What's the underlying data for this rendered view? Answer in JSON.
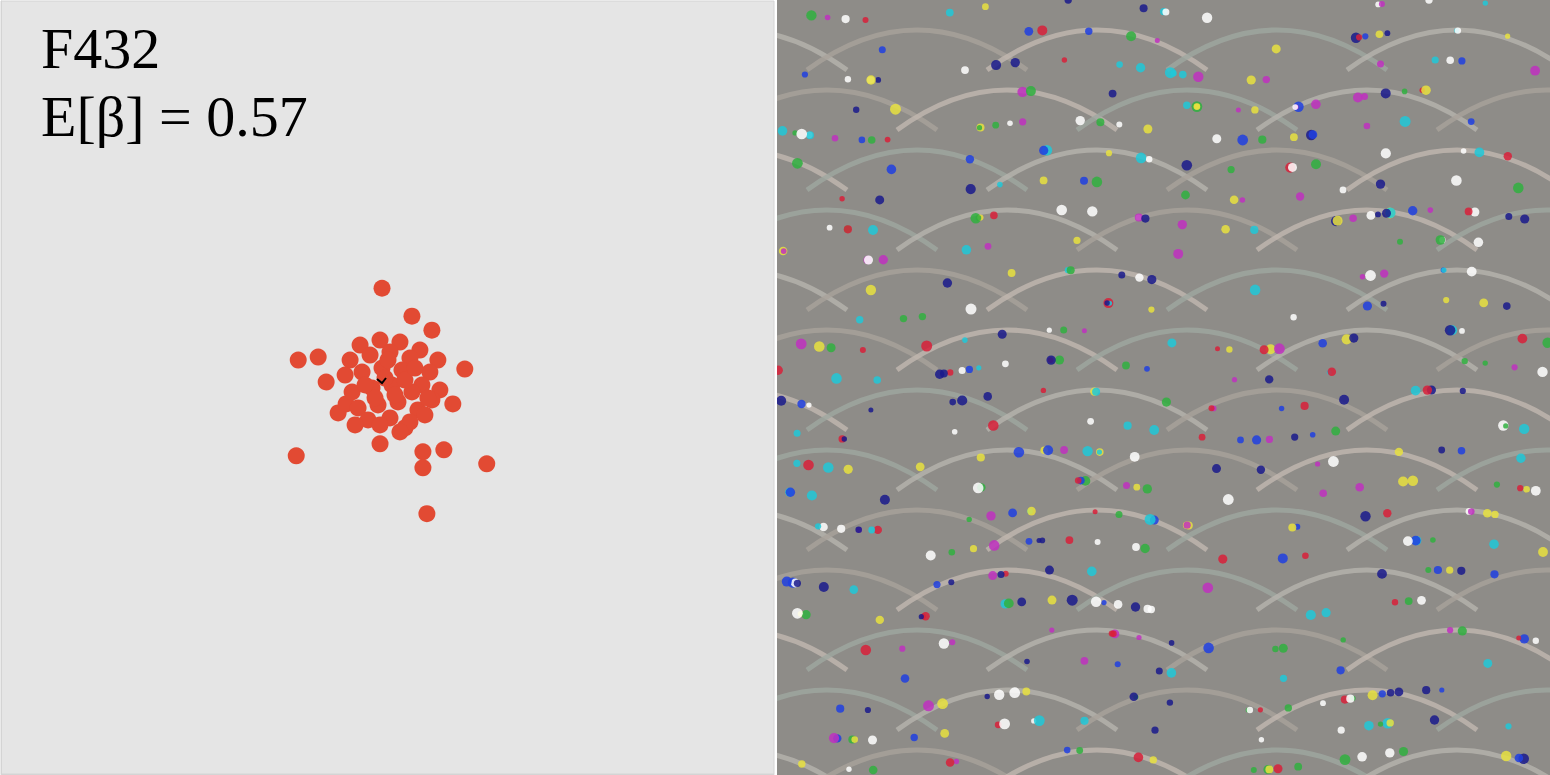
{
  "chart_data": {
    "type": "scatter",
    "title": "F432",
    "subtitle": "E[β] = 0.57",
    "x": [
      382,
      298,
      318,
      412,
      432,
      326,
      465,
      453,
      296,
      380,
      423,
      444,
      423,
      487,
      427,
      338,
      405,
      346,
      360,
      380,
      400,
      420,
      438,
      350,
      370,
      390,
      410,
      430,
      345,
      362,
      382,
      402,
      422,
      440,
      352,
      372,
      392,
      412,
      432,
      358,
      378,
      398,
      418,
      368,
      390,
      410,
      380,
      400,
      355,
      425,
      385,
      395,
      375,
      405,
      365,
      415,
      388,
      428
    ],
    "values": [
      487,
      415,
      418,
      459,
      445,
      393,
      406,
      371,
      319,
      331,
      323,
      325,
      307,
      311,
      261,
      362,
      347,
      371,
      430,
      435,
      433,
      425,
      415,
      415,
      420,
      423,
      417,
      403,
      400,
      403,
      407,
      405,
      390,
      385,
      383,
      387,
      390,
      383,
      375,
      367,
      370,
      373,
      365,
      355,
      357,
      353,
      350,
      343,
      350,
      360,
      397,
      380,
      377,
      395,
      390,
      407,
      415,
      377
    ],
    "color": "#e24a33",
    "marker": "circle",
    "xlim": [
      0,
      775
    ],
    "ylim": [
      0,
      775
    ],
    "grid": false,
    "tick_labels": false
  }
}
